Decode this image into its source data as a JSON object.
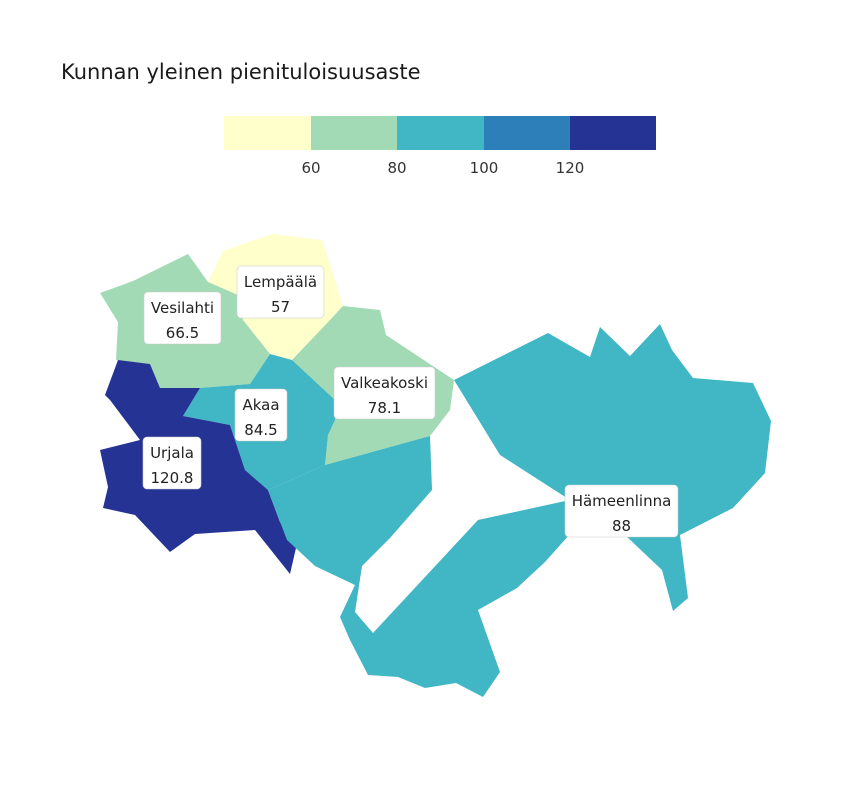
{
  "title": "Kunnan yleinen pienituloisuusaste",
  "legend": {
    "bins": [
      {
        "color": "#ffffcc"
      },
      {
        "color": "#a1dab4"
      },
      {
        "color": "#41b6c4"
      },
      {
        "color": "#2c7fb8"
      },
      {
        "color": "#253494"
      }
    ],
    "ticks": [
      "60",
      "80",
      "100",
      "120"
    ]
  },
  "regions": [
    {
      "name": "Lempäälä",
      "value": "57",
      "color": "#ffffcc"
    },
    {
      "name": "Vesilahti",
      "value": "66.5",
      "color": "#a1dab4"
    },
    {
      "name": "Valkeakoski",
      "value": "78.1",
      "color": "#a1dab4"
    },
    {
      "name": "Akaa",
      "value": "84.5",
      "color": "#41b6c4"
    },
    {
      "name": "Urjala",
      "value": "120.8",
      "color": "#253494"
    },
    {
      "name": "Hämeenlinna",
      "value": "88",
      "color": "#41b6c4"
    }
  ]
}
